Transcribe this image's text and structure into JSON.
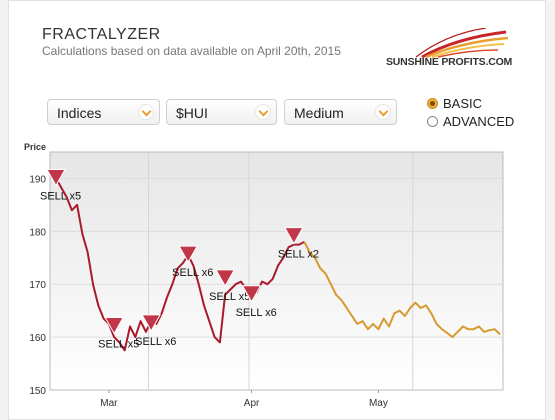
{
  "header": {
    "title": "FRACTALYZER",
    "subtitle": "Calculations based on data available on April 20th, 2015",
    "logo_text": "SUNSHINE PROFITS.COM",
    "logo_icon": "sunburst-logo-icon"
  },
  "controls": {
    "selects": [
      {
        "value": "Indices"
      },
      {
        "value": "$HUI"
      },
      {
        "value": "Medium"
      }
    ],
    "mode": [
      {
        "label": "BASIC",
        "selected": true
      },
      {
        "label": "ADVANCED",
        "selected": false
      }
    ]
  },
  "colors": {
    "actual": "#a81a2c",
    "projection": "#d79a2e",
    "marker": "#c2364a"
  },
  "chart_data": {
    "type": "line",
    "ylabel": "Price",
    "ylim": [
      150,
      195
    ],
    "yticks": [
      150,
      160,
      170,
      180,
      190
    ],
    "xtick_labels": [
      "Mar",
      "Apr",
      "May"
    ],
    "grid": true,
    "series": [
      {
        "style": "actual",
        "points": [
          [
            0,
            190
          ],
          [
            2,
            186.5
          ],
          [
            3,
            184
          ],
          [
            4,
            185
          ],
          [
            5,
            179.5
          ],
          [
            6,
            176
          ],
          [
            7,
            170
          ],
          [
            8,
            166
          ],
          [
            9,
            163.5
          ],
          [
            10,
            162.5
          ],
          [
            11,
            160
          ],
          [
            12,
            159
          ],
          [
            13,
            157.5
          ],
          [
            14,
            162
          ],
          [
            15,
            160
          ],
          [
            16,
            163
          ],
          [
            17,
            161
          ],
          [
            18,
            163
          ],
          [
            19,
            162.5
          ],
          [
            20,
            164.5
          ],
          [
            21,
            167.5
          ],
          [
            22,
            170
          ],
          [
            23,
            173
          ],
          [
            24,
            174
          ],
          [
            25,
            175.5
          ],
          [
            26,
            173.5
          ],
          [
            27,
            170
          ],
          [
            28,
            166
          ],
          [
            29,
            163
          ],
          [
            30,
            160
          ],
          [
            31,
            159
          ],
          [
            32,
            168
          ],
          [
            33,
            169
          ],
          [
            34,
            170
          ],
          [
            35,
            170.5
          ],
          [
            36,
            169
          ],
          [
            37,
            167.5
          ],
          [
            38,
            168.5
          ],
          [
            39,
            170.5
          ],
          [
            40,
            170
          ],
          [
            41,
            171
          ],
          [
            42,
            173.5
          ],
          [
            43,
            175
          ],
          [
            44,
            177
          ],
          [
            45,
            177.5
          ],
          [
            46,
            177.5
          ],
          [
            47,
            178
          ]
        ]
      },
      {
        "style": "projection",
        "points": [
          [
            47,
            178
          ],
          [
            48,
            176
          ],
          [
            49,
            175
          ],
          [
            50,
            173
          ],
          [
            51,
            172
          ],
          [
            52,
            170
          ],
          [
            53,
            168
          ],
          [
            54,
            167
          ],
          [
            55,
            165.5
          ],
          [
            56,
            164
          ],
          [
            57,
            162.5
          ],
          [
            58,
            163
          ],
          [
            59,
            161.5
          ],
          [
            60,
            162.5
          ],
          [
            61,
            161.5
          ],
          [
            62,
            163.5
          ],
          [
            63,
            162
          ],
          [
            64,
            164.5
          ],
          [
            65,
            165
          ],
          [
            66,
            164
          ],
          [
            67,
            165.5
          ],
          [
            68,
            166.5
          ],
          [
            69,
            165.5
          ],
          [
            70,
            166
          ],
          [
            71,
            164.5
          ],
          [
            72,
            162.5
          ],
          [
            73,
            161.5
          ],
          [
            74,
            160.8
          ],
          [
            75,
            160
          ],
          [
            76,
            161
          ],
          [
            77,
            162
          ],
          [
            78,
            161.5
          ],
          [
            79,
            161.5
          ],
          [
            80,
            162
          ],
          [
            81,
            161
          ],
          [
            82,
            161.3
          ],
          [
            83,
            161.5
          ],
          [
            84,
            160.5
          ]
        ]
      }
    ],
    "signals": [
      {
        "x": 0,
        "y": 190,
        "label": "SELL x5"
      },
      {
        "x": 11,
        "y": 162,
        "label": "SELL x5"
      },
      {
        "x": 18,
        "y": 162.5,
        "label": "SELL x6"
      },
      {
        "x": 25,
        "y": 175.5,
        "label": "SELL x6"
      },
      {
        "x": 32,
        "y": 171,
        "label": "SELL x5"
      },
      {
        "x": 37,
        "y": 168,
        "label": "SELL x6"
      },
      {
        "x": 45,
        "y": 179,
        "label": "SELL x2"
      }
    ]
  }
}
